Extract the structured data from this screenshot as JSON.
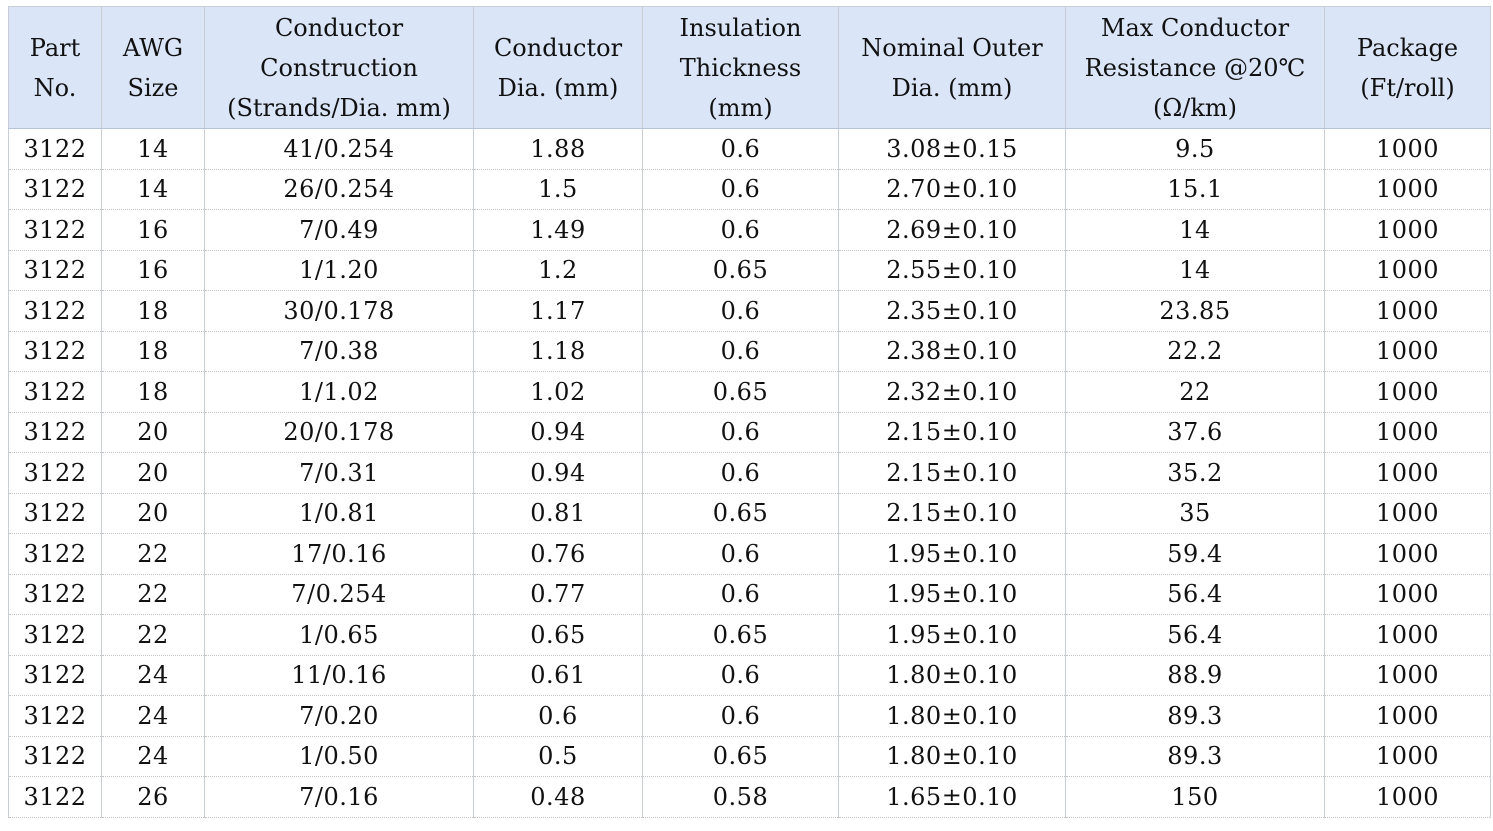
{
  "table": {
    "header": [
      [
        "Part",
        "No."
      ],
      [
        "AWG",
        "Size"
      ],
      [
        "Conductor",
        "Construction",
        "(Strands/Dia. mm)"
      ],
      [
        "Conductor",
        "Dia. (mm)"
      ],
      [
        "Insulation",
        "Thickness",
        "(mm)"
      ],
      [
        "Nominal Outer",
        "Dia. (mm)"
      ],
      [
        "Max Conductor",
        "Resistance @20℃",
        "(Ω/km)"
      ],
      [
        "Package",
        "(Ft/roll)"
      ]
    ],
    "rows": [
      [
        "3122",
        "14",
        "41/0.254",
        "1.88",
        "0.6",
        "3.08±0.15",
        "9.5",
        "1000"
      ],
      [
        "3122",
        "14",
        "26/0.254",
        "1.5",
        "0.6",
        "2.70±0.10",
        "15.1",
        "1000"
      ],
      [
        "3122",
        "16",
        "7/0.49",
        "1.49",
        "0.6",
        "2.69±0.10",
        "14",
        "1000"
      ],
      [
        "3122",
        "16",
        "1/1.20",
        "1.2",
        "0.65",
        "2.55±0.10",
        "14",
        "1000"
      ],
      [
        "3122",
        "18",
        "30/0.178",
        "1.17",
        "0.6",
        "2.35±0.10",
        "23.85",
        "1000"
      ],
      [
        "3122",
        "18",
        "7/0.38",
        "1.18",
        "0.6",
        "2.38±0.10",
        "22.2",
        "1000"
      ],
      [
        "3122",
        "18",
        "1/1.02",
        "1.02",
        "0.65",
        "2.32±0.10",
        "22",
        "1000"
      ],
      [
        "3122",
        "20",
        "20/0.178",
        "0.94",
        "0.6",
        "2.15±0.10",
        "37.6",
        "1000"
      ],
      [
        "3122",
        "20",
        "7/0.31",
        "0.94",
        "0.6",
        "2.15±0.10",
        "35.2",
        "1000"
      ],
      [
        "3122",
        "20",
        "1/0.81",
        "0.81",
        "0.65",
        "2.15±0.10",
        "35",
        "1000"
      ],
      [
        "3122",
        "22",
        "17/0.16",
        "0.76",
        "0.6",
        "1.95±0.10",
        "59.4",
        "1000"
      ],
      [
        "3122",
        "22",
        "7/0.254",
        "0.77",
        "0.6",
        "1.95±0.10",
        "56.4",
        "1000"
      ],
      [
        "3122",
        "22",
        "1/0.65",
        "0.65",
        "0.65",
        "1.95±0.10",
        "56.4",
        "1000"
      ],
      [
        "3122",
        "24",
        "11/0.16",
        "0.61",
        "0.6",
        "1.80±0.10",
        "88.9",
        "1000"
      ],
      [
        "3122",
        "24",
        "7/0.20",
        "0.6",
        "0.6",
        "1.80±0.10",
        "89.3",
        "1000"
      ],
      [
        "3122",
        "24",
        "1/0.50",
        "0.5",
        "0.65",
        "1.80±0.10",
        "89.3",
        "1000"
      ],
      [
        "3122",
        "26",
        "7/0.16",
        "0.48",
        "0.58",
        "1.65±0.10",
        "150",
        "1000"
      ]
    ]
  }
}
